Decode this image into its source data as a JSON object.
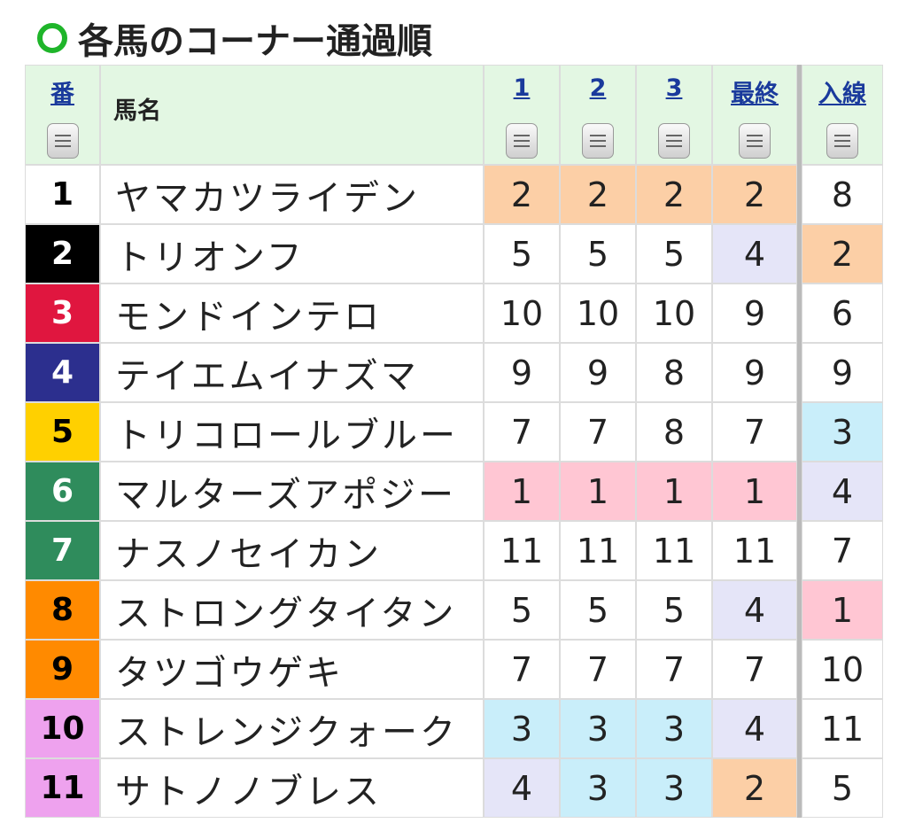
{
  "title": "各馬のコーナー通過順",
  "table": {
    "headers": [
      "番",
      "馬名",
      "1",
      "2",
      "3",
      "最終",
      "入線"
    ],
    "rank_colors": [
      "#ffc6d3",
      "#fccfa6",
      "#c9eefa",
      "#e5e5f8"
    ],
    "rows": [
      {
        "number": 1,
        "frame_color": "#ffffff",
        "frame_text_color": "#000000",
        "name": "ヤマカツライデン",
        "corners": [
          2,
          2,
          2
        ],
        "final": 2,
        "finish": 8
      },
      {
        "number": 2,
        "frame_color": "#000000",
        "frame_text_color": "#ffffff",
        "name": "トリオンフ",
        "corners": [
          5,
          5,
          5
        ],
        "final": 4,
        "finish": 2
      },
      {
        "number": 3,
        "frame_color": "#e0163f",
        "frame_text_color": "#ffffff",
        "name": "モンドインテロ",
        "corners": [
          10,
          10,
          10
        ],
        "final": 9,
        "finish": 6
      },
      {
        "number": 4,
        "frame_color": "#2c2f8e",
        "frame_text_color": "#ffffff",
        "name": "テイエムイナズマ",
        "corners": [
          9,
          9,
          8
        ],
        "final": 9,
        "finish": 9
      },
      {
        "number": 5,
        "frame_color": "#ffd000",
        "frame_text_color": "#000000",
        "name": "トリコロールブルー",
        "corners": [
          7,
          7,
          8
        ],
        "final": 7,
        "finish": 3
      },
      {
        "number": 6,
        "frame_color": "#2f8c5c",
        "frame_text_color": "#ffffff",
        "name": "マルターズアポジー",
        "corners": [
          1,
          1,
          1
        ],
        "final": 1,
        "finish": 4
      },
      {
        "number": 7,
        "frame_color": "#2f8c5c",
        "frame_text_color": "#ffffff",
        "name": "ナスノセイカン",
        "corners": [
          11,
          11,
          11
        ],
        "final": 11,
        "finish": 7
      },
      {
        "number": 8,
        "frame_color": "#ff8a00",
        "frame_text_color": "#000000",
        "name": "ストロングタイタン",
        "corners": [
          5,
          5,
          5
        ],
        "final": 4,
        "finish": 1
      },
      {
        "number": 9,
        "frame_color": "#ff8a00",
        "frame_text_color": "#000000",
        "name": "タツゴウゲキ",
        "corners": [
          7,
          7,
          7
        ],
        "final": 7,
        "finish": 10
      },
      {
        "number": 10,
        "frame_color": "#eea2ee",
        "frame_text_color": "#000000",
        "name": "ストレンジクォーク",
        "corners": [
          3,
          3,
          3
        ],
        "final": 4,
        "finish": 11
      },
      {
        "number": 11,
        "frame_color": "#eea2ee",
        "frame_text_color": "#000000",
        "name": "サトノノブレス",
        "corners": [
          4,
          3,
          3
        ],
        "final": 2,
        "finish": 5
      }
    ]
  }
}
